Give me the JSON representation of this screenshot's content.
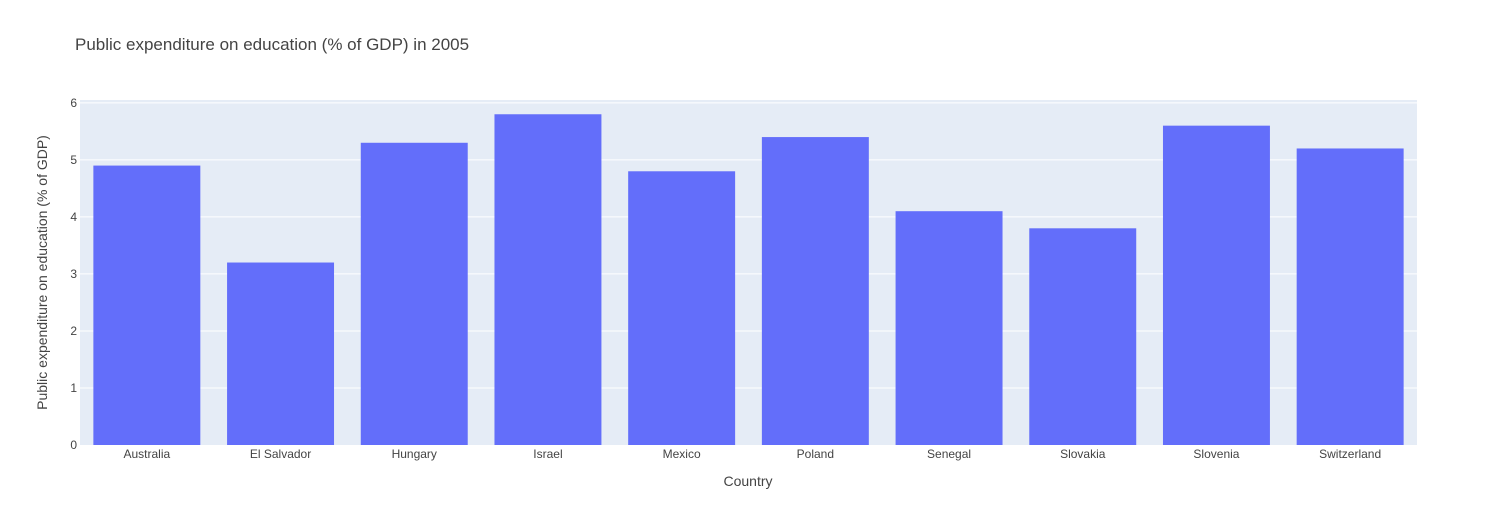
{
  "chart_data": {
    "type": "bar",
    "title": "Public expenditure on education (% of GDP) in 2005",
    "xlabel": "Country",
    "ylabel": "Public expenditure on education (% of GDP)",
    "categories": [
      "Australia",
      "El Salvador",
      "Hungary",
      "Israel",
      "Mexico",
      "Poland",
      "Senegal",
      "Slovakia",
      "Slovenia",
      "Switzerland"
    ],
    "values": [
      4.9,
      3.2,
      5.3,
      5.8,
      4.8,
      5.4,
      4.1,
      3.8,
      5.6,
      5.2
    ],
    "ylim": [
      0,
      6.05
    ],
    "yticks": [
      0,
      1,
      2,
      3,
      4,
      5,
      6
    ],
    "grid": true,
    "legend": "none",
    "colors": {
      "bar": "#636efa",
      "plot_background": "#e5ecf6",
      "gridline": "#ffffff",
      "text": "#444444"
    }
  }
}
